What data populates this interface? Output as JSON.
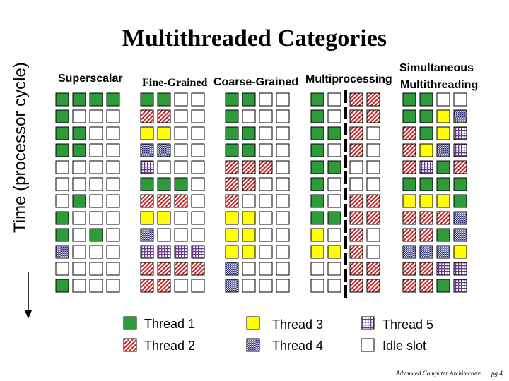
{
  "title": "Multithreaded Categories",
  "y_axis_label": "Time (processor cycle)",
  "columns": [
    {
      "id": "superscalar",
      "label_lines": [
        "Superscalar"
      ],
      "rows": [
        "1111",
        "1000",
        "1100",
        "1100",
        "0000",
        "0000",
        "0100",
        "1000",
        "1010",
        "4000",
        "0000",
        "1000"
      ]
    },
    {
      "id": "fine-grained",
      "label_lines": [
        "Fine-Grained"
      ],
      "rows": [
        "1100",
        "2200",
        "3300",
        "4400",
        "5000",
        "1110",
        "2220",
        "3300",
        "4000",
        "5555",
        "2222",
        "2200"
      ]
    },
    {
      "id": "coarse-grained",
      "label_lines": [
        "Coarse-Grained"
      ],
      "rows": [
        "1100",
        "1000",
        "1100",
        "1100",
        "2220",
        "2200",
        "2000",
        "3300",
        "3300",
        "3300",
        "4000",
        "4000"
      ]
    },
    {
      "id": "multiprocessing",
      "label_lines": [
        "Multiprocessing"
      ],
      "rows": [
        "10|22",
        "10|22",
        "11|20",
        "10|20",
        "11|00",
        "10|00",
        "10|22",
        "11|22",
        "30|20",
        "33|20",
        "00|22",
        "00|22"
      ]
    },
    {
      "id": "smt",
      "label_lines": [
        "Simultaneous",
        "Multithreading"
      ],
      "rows": [
        "1100",
        "1134",
        "2135",
        "2345",
        "2512",
        "1111",
        "3331",
        "2224",
        "2214",
        "4443",
        "2255",
        "2215"
      ]
    }
  ],
  "legend": [
    {
      "key": "1",
      "label": "Thread 1"
    },
    {
      "key": "2",
      "label": "Thread 2"
    },
    {
      "key": "3",
      "label": "Thread 3"
    },
    {
      "key": "4",
      "label": "Thread 4"
    },
    {
      "key": "5",
      "label": "Thread 5"
    },
    {
      "key": "0",
      "label": "Idle slot"
    }
  ],
  "colors": {
    "thread1": "#2e9b3a",
    "thread2_stripe": "#cc2222",
    "thread3": "#ffff00",
    "thread4": "#3a3a8a",
    "thread5": "#6a3a8a",
    "outline": "#000000"
  },
  "footer": {
    "course": "Advanced Computer Architecture",
    "page": "pg 4"
  }
}
